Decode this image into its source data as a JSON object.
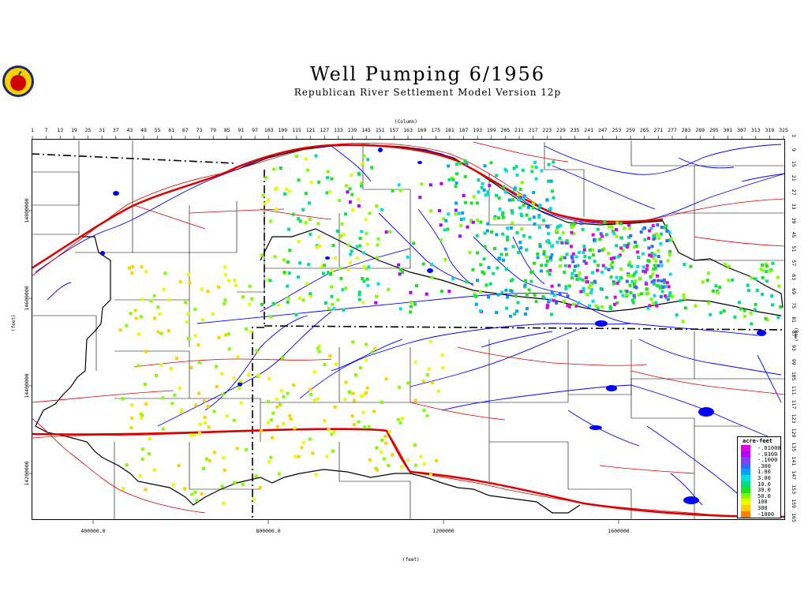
{
  "title": "Well Pumping   6/1956",
  "subtitle": "Republican River Settlement Model Version 12p",
  "column_axis_title": "(Column)",
  "row_axis_title": "(Row)",
  "x_axis_unit": "(feet)",
  "y_axis_unit": "(feet)",
  "column_ticks": [
    "1",
    "7",
    "13",
    "19",
    "25",
    "31",
    "37",
    "43",
    "49",
    "55",
    "61",
    "67",
    "73",
    "79",
    "85",
    "91",
    "97",
    "103",
    "109",
    "115",
    "121",
    "127",
    "133",
    "139",
    "145",
    "151",
    "157",
    "163",
    "169",
    "175",
    "181",
    "187",
    "193",
    "199",
    "205",
    "211",
    "217",
    "223",
    "229",
    "235",
    "241",
    "247",
    "253",
    "259",
    "265",
    "271",
    "277",
    "283",
    "289",
    "295",
    "301",
    "307",
    "313",
    "319",
    "325"
  ],
  "row_ticks": [
    "3",
    "9",
    "15",
    "21",
    "27",
    "33",
    "39",
    "45",
    "51",
    "57",
    "63",
    "69",
    "75",
    "81",
    "87",
    "93",
    "99",
    "105",
    "111",
    "117",
    "123",
    "129",
    "135",
    "141",
    "147",
    "153",
    "159",
    "165"
  ],
  "x_ticks": [
    "400000.0",
    "800000.0",
    "1200000",
    "1600000"
  ],
  "y_ticks": [
    "14800000",
    "14600000",
    "14400000",
    "14200000"
  ],
  "legend": {
    "title": "acre-feet",
    "entries": [
      {
        "label": "-.01000",
        "color": "#e000e0"
      },
      {
        "label": "-.0300",
        "color": "#b000ff"
      },
      {
        "label": "-.1000",
        "color": "#8040ff"
      },
      {
        "label": ".300",
        "color": "#4060ff"
      },
      {
        "label": "1.00",
        "color": "#00a0ff"
      },
      {
        "label": "3.00",
        "color": "#00e0e0"
      },
      {
        "label": "10.0",
        "color": "#00e080"
      },
      {
        "label": "30.0",
        "color": "#20e020"
      },
      {
        "label": "50.0",
        "color": "#80ff00"
      },
      {
        "label": "100",
        "color": "#e0ff00"
      },
      {
        "label": "300",
        "color": "#ffd000"
      },
      {
        "label": "-1000",
        "color": "#ff8000"
      }
    ]
  },
  "colors": {
    "river": "#0000ff",
    "road": "#dd0000",
    "boundary": "#000000",
    "frame": "#000000"
  }
}
